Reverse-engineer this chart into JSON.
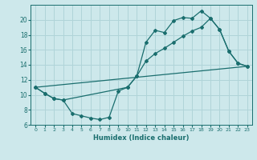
{
  "xlabel": "Humidex (Indice chaleur)",
  "bg_color": "#cde8eb",
  "grid_color": "#b0d4d8",
  "line_color": "#1a6e6e",
  "ylim": [
    6,
    22
  ],
  "xlim": [
    -0.5,
    23.5
  ],
  "yticks": [
    6,
    8,
    10,
    12,
    14,
    16,
    18,
    20
  ],
  "xticks": [
    0,
    1,
    2,
    3,
    4,
    5,
    6,
    7,
    8,
    9,
    10,
    11,
    12,
    13,
    14,
    15,
    16,
    17,
    18,
    19,
    20,
    21,
    22,
    23
  ],
  "line1_x": [
    0,
    1,
    2,
    3,
    4,
    5,
    6,
    7,
    8,
    9,
    10,
    11,
    12,
    13,
    14,
    15,
    16,
    17,
    18,
    19,
    20,
    21,
    22,
    23
  ],
  "line1_y": [
    11,
    10.2,
    9.5,
    9.3,
    7.5,
    7.2,
    6.9,
    6.7,
    7.0,
    10.5,
    11.0,
    12.5,
    17.0,
    18.6,
    18.3,
    19.9,
    20.3,
    20.2,
    21.2,
    20.2,
    18.7,
    15.8,
    14.2,
    13.8
  ],
  "line2_x": [
    0,
    1,
    2,
    3,
    10,
    11,
    12,
    13,
    14,
    15,
    16,
    17,
    18,
    19,
    20,
    21,
    22,
    23
  ],
  "line2_y": [
    11,
    10.2,
    9.5,
    9.3,
    11.0,
    12.5,
    14.5,
    15.5,
    16.2,
    17.0,
    17.8,
    18.5,
    19.0,
    20.2,
    18.7,
    15.8,
    14.2,
    13.8
  ],
  "line3_x": [
    0,
    23
  ],
  "line3_y": [
    11,
    13.8
  ]
}
